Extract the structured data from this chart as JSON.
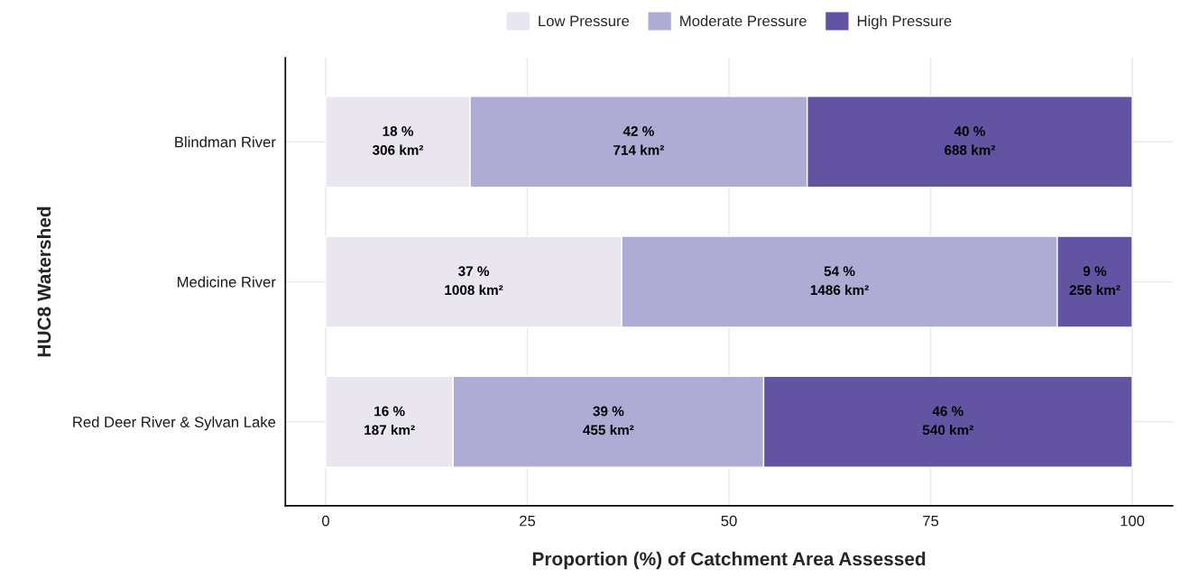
{
  "chart_data": {
    "type": "bar",
    "orientation": "horizontal",
    "stacked": true,
    "xlabel": "Proportion (%) of Catchment Area Assessed",
    "ylabel": "HUC8 Watershed",
    "categories": [
      "Blindman River",
      "Medicine River",
      "Red Deer River & Sylvan Lake"
    ],
    "series": [
      {
        "name": "Low Pressure",
        "color": "#e9e6f0",
        "values": [
          17.9,
          36.7,
          15.8
        ],
        "value_labels": [
          "18 %\n306 km²",
          "37 %\n1008 km²",
          "16 %\n187 km²"
        ]
      },
      {
        "name": "Moderate Pressure",
        "color": "#aeacd4",
        "values": [
          41.8,
          54.0,
          38.5
        ],
        "value_labels": [
          "42 %\n714 km²",
          "54 %\n1486 km²",
          "39 %\n455 km²"
        ]
      },
      {
        "name": "High Pressure",
        "color": "#6254a2",
        "values": [
          40.3,
          9.3,
          45.7
        ],
        "value_labels": [
          "40 %\n688 km²",
          "9 %\n256 km²",
          "46 %\n540 km²"
        ]
      }
    ],
    "xlim": [
      -5,
      105
    ],
    "xticks": [
      0,
      25,
      50,
      75,
      100
    ],
    "grid": true,
    "legend": "top"
  }
}
